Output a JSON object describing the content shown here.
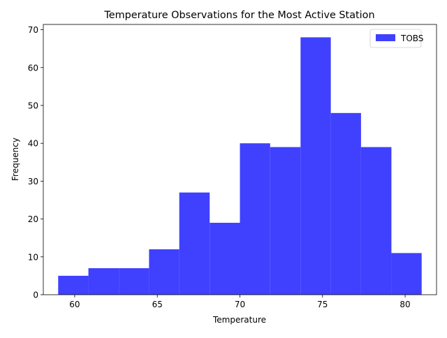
{
  "chart_data": {
    "type": "bar",
    "title": "Temperature Observations for the Most Active Station",
    "xlabel": "Temperature",
    "ylabel": "Frequency",
    "xlim": [
      58.1,
      81.9
    ],
    "ylim": [
      0,
      71.4
    ],
    "bin_edges": [
      59.0,
      60.83,
      62.67,
      64.5,
      66.33,
      68.17,
      70.0,
      71.83,
      73.67,
      75.5,
      77.33,
      79.17,
      81.0
    ],
    "series": [
      {
        "name": "TOBS",
        "values": [
          5,
          7,
          7,
          12,
          27,
          19,
          40,
          39,
          68,
          48,
          39,
          11
        ],
        "color": "#4040ff"
      }
    ],
    "xticks": [
      60,
      65,
      70,
      75,
      80
    ],
    "yticks": [
      0,
      10,
      20,
      30,
      40,
      50,
      60,
      70
    ],
    "legend_position": "top-right",
    "grid": false
  }
}
